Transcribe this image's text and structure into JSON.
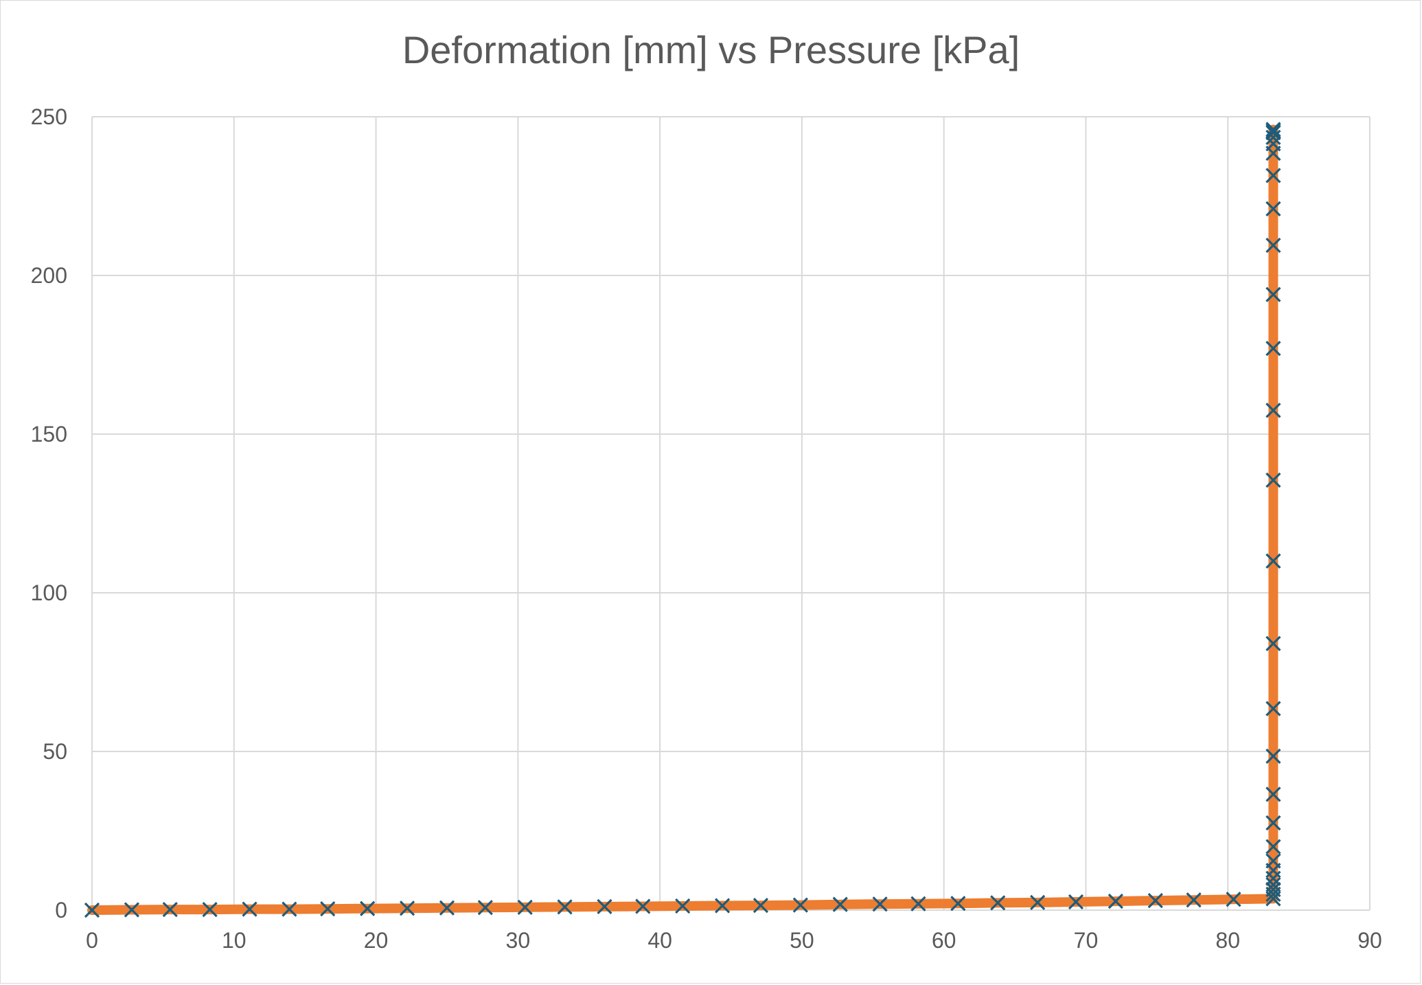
{
  "chart_data": {
    "type": "scatter",
    "title": "Deformation [mm] vs Pressure [kPa]",
    "xlabel": "",
    "ylabel": "",
    "xlim": [
      0,
      90
    ],
    "ylim": [
      0,
      250
    ],
    "x_ticks": [
      "0",
      "10",
      "20",
      "30",
      "40",
      "50",
      "60",
      "70",
      "80",
      "90"
    ],
    "y_ticks": [
      "0",
      "50",
      "100",
      "150",
      "200",
      "250"
    ],
    "grid": true,
    "legend": "none",
    "series": [
      {
        "marker": "x",
        "line": true,
        "marker_color": "#1f5c7a",
        "line_color": "#ed7d31",
        "x": [
          0,
          2.8,
          5.5,
          8.3,
          11.1,
          13.9,
          16.6,
          19.4,
          22.2,
          25.0,
          27.7,
          30.5,
          33.3,
          36.1,
          38.8,
          41.6,
          44.4,
          47.1,
          49.9,
          52.7,
          55.5,
          58.2,
          61.0,
          63.8,
          66.6,
          69.3,
          72.1,
          74.9,
          77.6,
          80.4,
          83.2,
          83.2,
          83.2,
          83.2,
          83.2,
          83.2,
          83.2,
          83.2,
          83.2,
          83.2,
          83.2,
          83.2,
          83.2,
          83.2,
          83.2,
          83.2,
          83.2,
          83.2,
          83.2,
          83.2,
          83.2,
          83.2,
          83.2,
          83.2,
          83.2,
          83.2,
          83.2
        ],
        "y": [
          0,
          0.1,
          0.2,
          0.2,
          0.3,
          0.3,
          0.4,
          0.5,
          0.6,
          0.7,
          0.8,
          0.9,
          1.0,
          1.1,
          1.2,
          1.3,
          1.4,
          1.5,
          1.6,
          1.8,
          1.9,
          2.0,
          2.1,
          2.3,
          2.4,
          2.6,
          2.8,
          3.0,
          3.2,
          3.4,
          3.6,
          5.0,
          6.5,
          8.0,
          10.0,
          12.5,
          15.5,
          20.0,
          27.5,
          36.5,
          48.5,
          63.5,
          84.0,
          110.0,
          135.5,
          157.5,
          177.0,
          194.0,
          209.5,
          221.0,
          231.5,
          238.5,
          241.5,
          243.5,
          245.0,
          245.5,
          246.0
        ]
      }
    ]
  }
}
